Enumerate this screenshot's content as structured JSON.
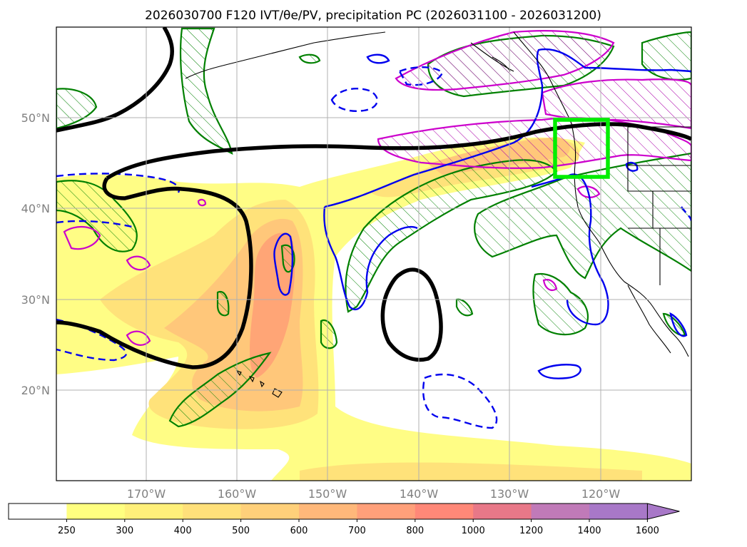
{
  "title": "2026030700 F120 IVT/θe/PV, precipitation PC (2026031100 - 2026031200)",
  "map": {
    "lat_labels": [
      "50°N",
      "40°N",
      "30°N",
      "20°N"
    ],
    "lon_labels": [
      "170°W",
      "160°W",
      "150°W",
      "140°W",
      "130°W",
      "120°W"
    ],
    "lat_range": [
      10,
      60
    ],
    "lon_range": [
      -180,
      -110
    ],
    "grid": true,
    "box_color": "#00ee00",
    "box_lat_range": [
      43.5,
      49.5
    ],
    "box_lon_range": [
      -125,
      -119
    ]
  },
  "colorbar": {
    "ticks": [
      "250",
      "300",
      "400",
      "500",
      "600",
      "700",
      "800",
      "1000",
      "1200",
      "1400",
      "1600"
    ],
    "colors": [
      "#ffffff",
      "#ffff80",
      "#fff07a",
      "#ffe07a",
      "#ffd07a",
      "#ffb87a",
      "#ffa07a",
      "#ff8878",
      "#e87888",
      "#c07ab8",
      "#a878c8"
    ],
    "extend": "max"
  },
  "contours": {
    "ivt_fill": [
      "#fffd85",
      "#ffe27a",
      "#ffc77a",
      "#ffa576"
    ],
    "black": "#000000",
    "blue": "#0000ee",
    "magenta": "#cc00cc",
    "green": "#008000"
  }
}
